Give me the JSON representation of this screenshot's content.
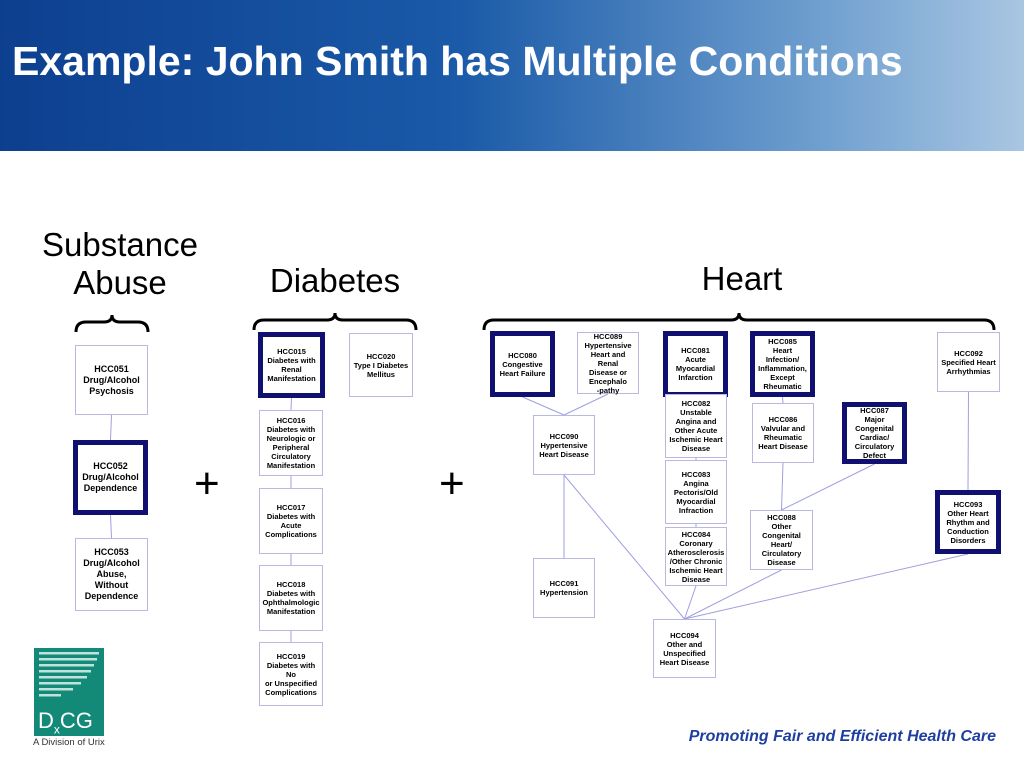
{
  "title": "Example: John Smith has Multiple Conditions",
  "groups": {
    "substance": "Substance\nAbuse",
    "diabetes": "Diabetes",
    "heart": "Heart"
  },
  "plus_sign": "+",
  "boxes": [
    {
      "id": "HCC051",
      "text": "HCC051\nDrug/Alcohol\nPsychosis",
      "highlighted": false
    },
    {
      "id": "HCC052",
      "text": "HCC052\nDrug/Alcohol\nDependence",
      "highlighted": true
    },
    {
      "id": "HCC053",
      "text": "HCC053\nDrug/Alcohol\nAbuse,\nWithout\nDependence",
      "highlighted": false
    },
    {
      "id": "HCC015",
      "text": "HCC015\nDiabetes with\nRenal\nManifestation",
      "highlighted": true
    },
    {
      "id": "HCC020",
      "text": "HCC020\nType I Diabetes\nMellitus",
      "highlighted": false
    },
    {
      "id": "HCC016",
      "text": "HCC016\nDiabetes with\nNeurologic or\nPeripheral\nCirculatory\nManifestation",
      "highlighted": false
    },
    {
      "id": "HCC017",
      "text": "HCC017\nDiabetes with\nAcute\nComplications",
      "highlighted": false
    },
    {
      "id": "HCC018",
      "text": "HCC018\nDiabetes with\nOphthalmologic\nManifestation",
      "highlighted": false
    },
    {
      "id": "HCC019",
      "text": "HCC019\nDiabetes with No\nor Unspecified\nComplications",
      "highlighted": false
    },
    {
      "id": "HCC080",
      "text": "HCC080\nCongestive\nHeart Failure",
      "highlighted": true
    },
    {
      "id": "HCC089",
      "text": "HCC089\nHypertensive\nHeart and Renal\nDisease or\nEncephalo\n-pathy",
      "highlighted": false
    },
    {
      "id": "HCC081",
      "text": "HCC081\nAcute\nMyocardial\nInfarction",
      "highlighted": true
    },
    {
      "id": "HCC085",
      "text": "HCC085\nHeart Infection/\nInflammation,\nExcept\nRheumatic",
      "highlighted": true
    },
    {
      "id": "HCC092",
      "text": "HCC092\nSpecified Heart\nArrhythmias",
      "highlighted": false
    },
    {
      "id": "HCC090",
      "text": "HCC090\nHypertensive\nHeart Disease",
      "highlighted": false
    },
    {
      "id": "HCC082",
      "text": "HCC082\nUnstable\nAngina and\nOther Acute\nIschemic Heart\nDisease",
      "highlighted": false
    },
    {
      "id": "HCC083",
      "text": "HCC083\nAngina\nPectoris/Old\nMyocardial\nInfraction",
      "highlighted": false
    },
    {
      "id": "HCC084",
      "text": "HCC084\nCoronary\nAtherosclerosis\n/Other Chronic\nIschemic Heart\nDisease",
      "highlighted": false
    },
    {
      "id": "HCC086",
      "text": "HCC086\nValvular and\nRheumatic\nHeart Disease",
      "highlighted": false
    },
    {
      "id": "HCC087",
      "text": "HCC087\nMajor\nCongenital\nCardiac/\nCirculatory\nDefect",
      "highlighted": true
    },
    {
      "id": "HCC088",
      "text": "HCC088\nOther\nCongenital\nHeart/\nCirculatory\nDisease",
      "highlighted": false
    },
    {
      "id": "HCC093",
      "text": "HCC093\nOther Heart\nRhythm and\nConduction\nDisorders",
      "highlighted": true
    },
    {
      "id": "HCC091",
      "text": "HCC091\nHypertension",
      "highlighted": false
    },
    {
      "id": "HCC094",
      "text": "HCC094\nOther and\nUnspecified\nHeart Disease",
      "highlighted": false
    }
  ],
  "links": [
    [
      "HCC051",
      "HCC052"
    ],
    [
      "HCC052",
      "HCC053"
    ],
    [
      "HCC015",
      "HCC016"
    ],
    [
      "HCC016",
      "HCC017"
    ],
    [
      "HCC017",
      "HCC018"
    ],
    [
      "HCC018",
      "HCC019"
    ],
    [
      "HCC080",
      "HCC090"
    ],
    [
      "HCC089",
      "HCC090"
    ],
    [
      "HCC090",
      "HCC091"
    ],
    [
      "HCC090",
      "HCC094"
    ],
    [
      "HCC081",
      "HCC082"
    ],
    [
      "HCC082",
      "HCC083"
    ],
    [
      "HCC083",
      "HCC084"
    ],
    [
      "HCC084",
      "HCC094"
    ],
    [
      "HCC085",
      "HCC086"
    ],
    [
      "HCC086",
      "HCC088"
    ],
    [
      "HCC087",
      "HCC088"
    ],
    [
      "HCC088",
      "HCC094"
    ],
    [
      "HCC092",
      "HCC093"
    ],
    [
      "HCC093",
      "HCC094"
    ]
  ],
  "colors": {
    "highlight_border": "#101070",
    "link": "#9f9fe0",
    "footer": "#1f3fa0",
    "logo": "#138a78"
  },
  "logo": {
    "text": "DxCG",
    "subtitle": "A Division of Urix"
  },
  "footer": "Promoting Fair and Efficient Health Care"
}
